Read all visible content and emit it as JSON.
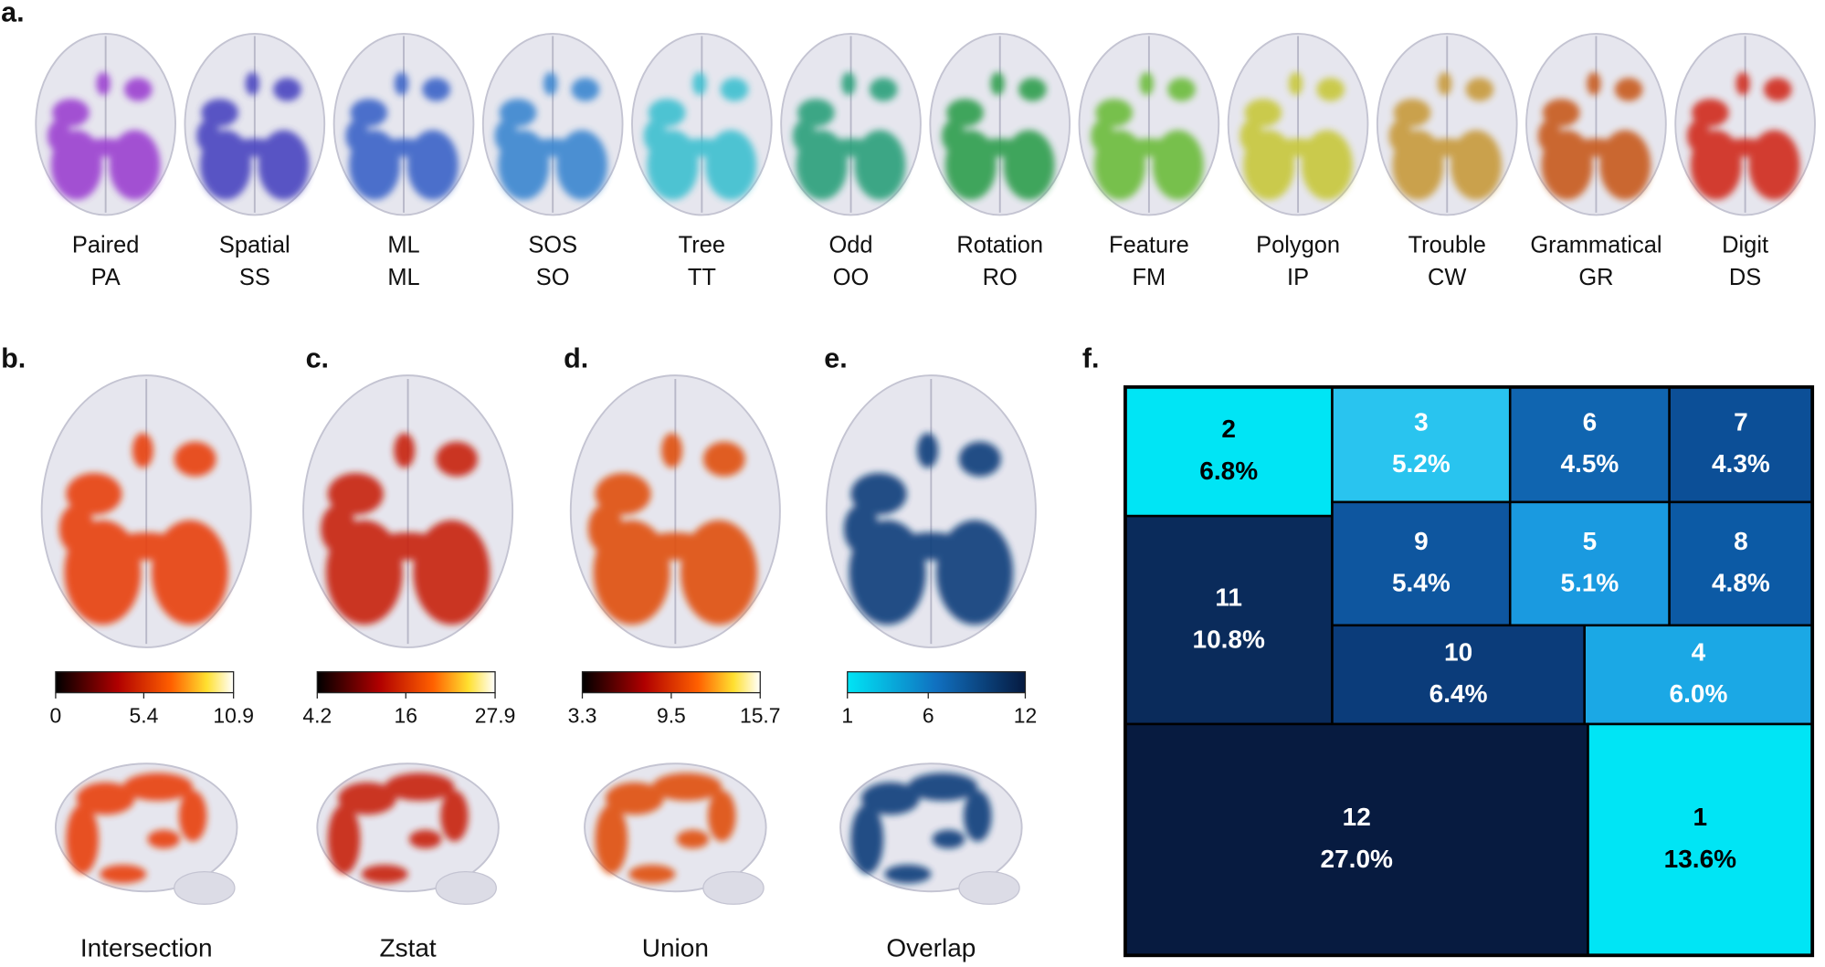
{
  "panel_a": {
    "label": "a.",
    "tasks": [
      {
        "name": "Paired",
        "code": "PA"
      },
      {
        "name": "Spatial",
        "code": "SS"
      },
      {
        "name": "ML",
        "code": "ML"
      },
      {
        "name": "SOS",
        "code": "SO"
      },
      {
        "name": "Tree",
        "code": "TT"
      },
      {
        "name": "Odd",
        "code": "OO"
      },
      {
        "name": "Rotation",
        "code": "RO"
      },
      {
        "name": "Feature",
        "code": "FM"
      },
      {
        "name": "Polygon",
        "code": "IP"
      },
      {
        "name": "Trouble",
        "code": "CW"
      },
      {
        "name": "Grammatical",
        "code": "GR"
      },
      {
        "name": "Digit",
        "code": "DS"
      }
    ]
  },
  "panels": [
    {
      "label": "b.",
      "colorbar": {
        "ticks": [
          0,
          5.4,
          10.9
        ]
      },
      "caption": "Intersection"
    },
    {
      "label": "c.",
      "colorbar": {
        "ticks": [
          4.2,
          16,
          27.9
        ]
      },
      "caption": "Zstat"
    },
    {
      "label": "d.",
      "colorbar": {
        "ticks": [
          3.3,
          9.5,
          15.7
        ]
      },
      "caption": "Union"
    },
    {
      "label": "e.",
      "colorbar": {
        "ticks": [
          1,
          6,
          12
        ]
      },
      "caption": "Overlap"
    }
  ],
  "panel_f": {
    "label": "f.",
    "cells": [
      {
        "id": "2",
        "share": "6.8%"
      },
      {
        "id": "3",
        "share": "5.2%"
      },
      {
        "id": "6",
        "share": "4.5%"
      },
      {
        "id": "7",
        "share": "4.3%"
      },
      {
        "id": "11",
        "share": "10.8%"
      },
      {
        "id": "9",
        "share": "5.4%"
      },
      {
        "id": "5",
        "share": "5.1%"
      },
      {
        "id": "8",
        "share": "4.8%"
      },
      {
        "id": "10",
        "share": "6.4%"
      },
      {
        "id": "4",
        "share": "6.0%"
      },
      {
        "id": "12",
        "share": "27.0%"
      },
      {
        "id": "1",
        "share": "13.6%"
      }
    ]
  }
}
